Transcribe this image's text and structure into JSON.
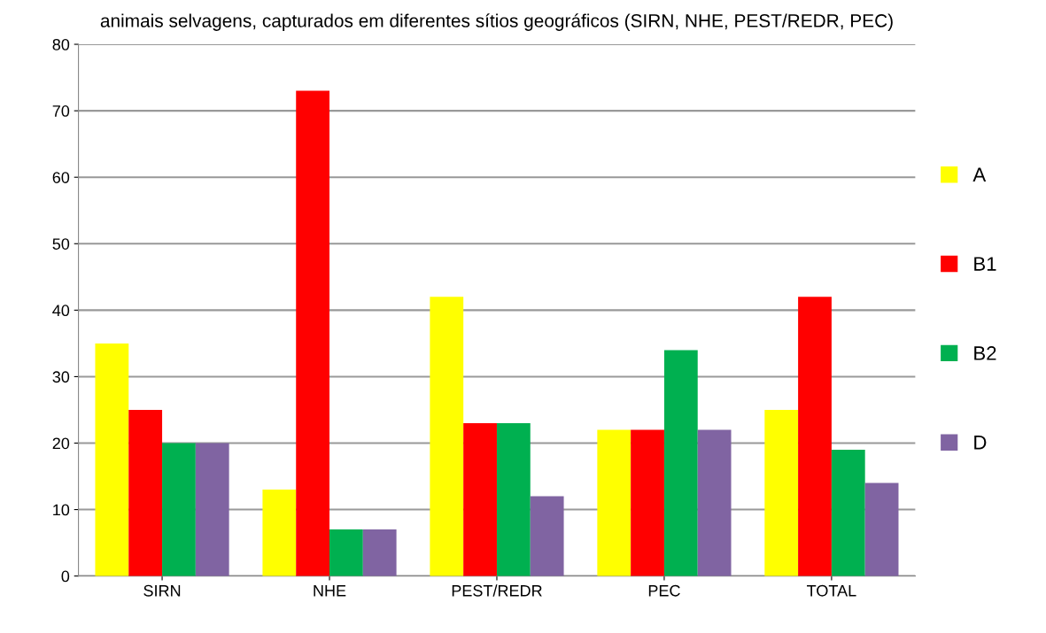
{
  "chart_data": {
    "type": "bar",
    "title": "animais selvagens, capturados em diferentes sítios geográficos (SIRN, NHE, PEST/REDR, PEC)",
    "categories": [
      "SIRN",
      "NHE",
      "PEST/REDR",
      "PEC",
      "TOTAL"
    ],
    "series": [
      {
        "name": "A",
        "color": "#ffff00",
        "values": [
          35,
          13,
          42,
          22,
          25
        ]
      },
      {
        "name": "B1",
        "color": "#ff0000",
        "values": [
          25,
          73,
          23,
          22,
          42
        ]
      },
      {
        "name": "B2",
        "color": "#00b050",
        "values": [
          20,
          7,
          23,
          34,
          19
        ]
      },
      {
        "name": "D",
        "color": "#8064a2",
        "values": [
          20,
          7,
          12,
          22,
          14
        ]
      }
    ],
    "ylim": [
      0,
      80
    ],
    "yticks": [
      0,
      10,
      20,
      30,
      40,
      50,
      60,
      70,
      80
    ],
    "grid": "y",
    "legend": "right"
  }
}
